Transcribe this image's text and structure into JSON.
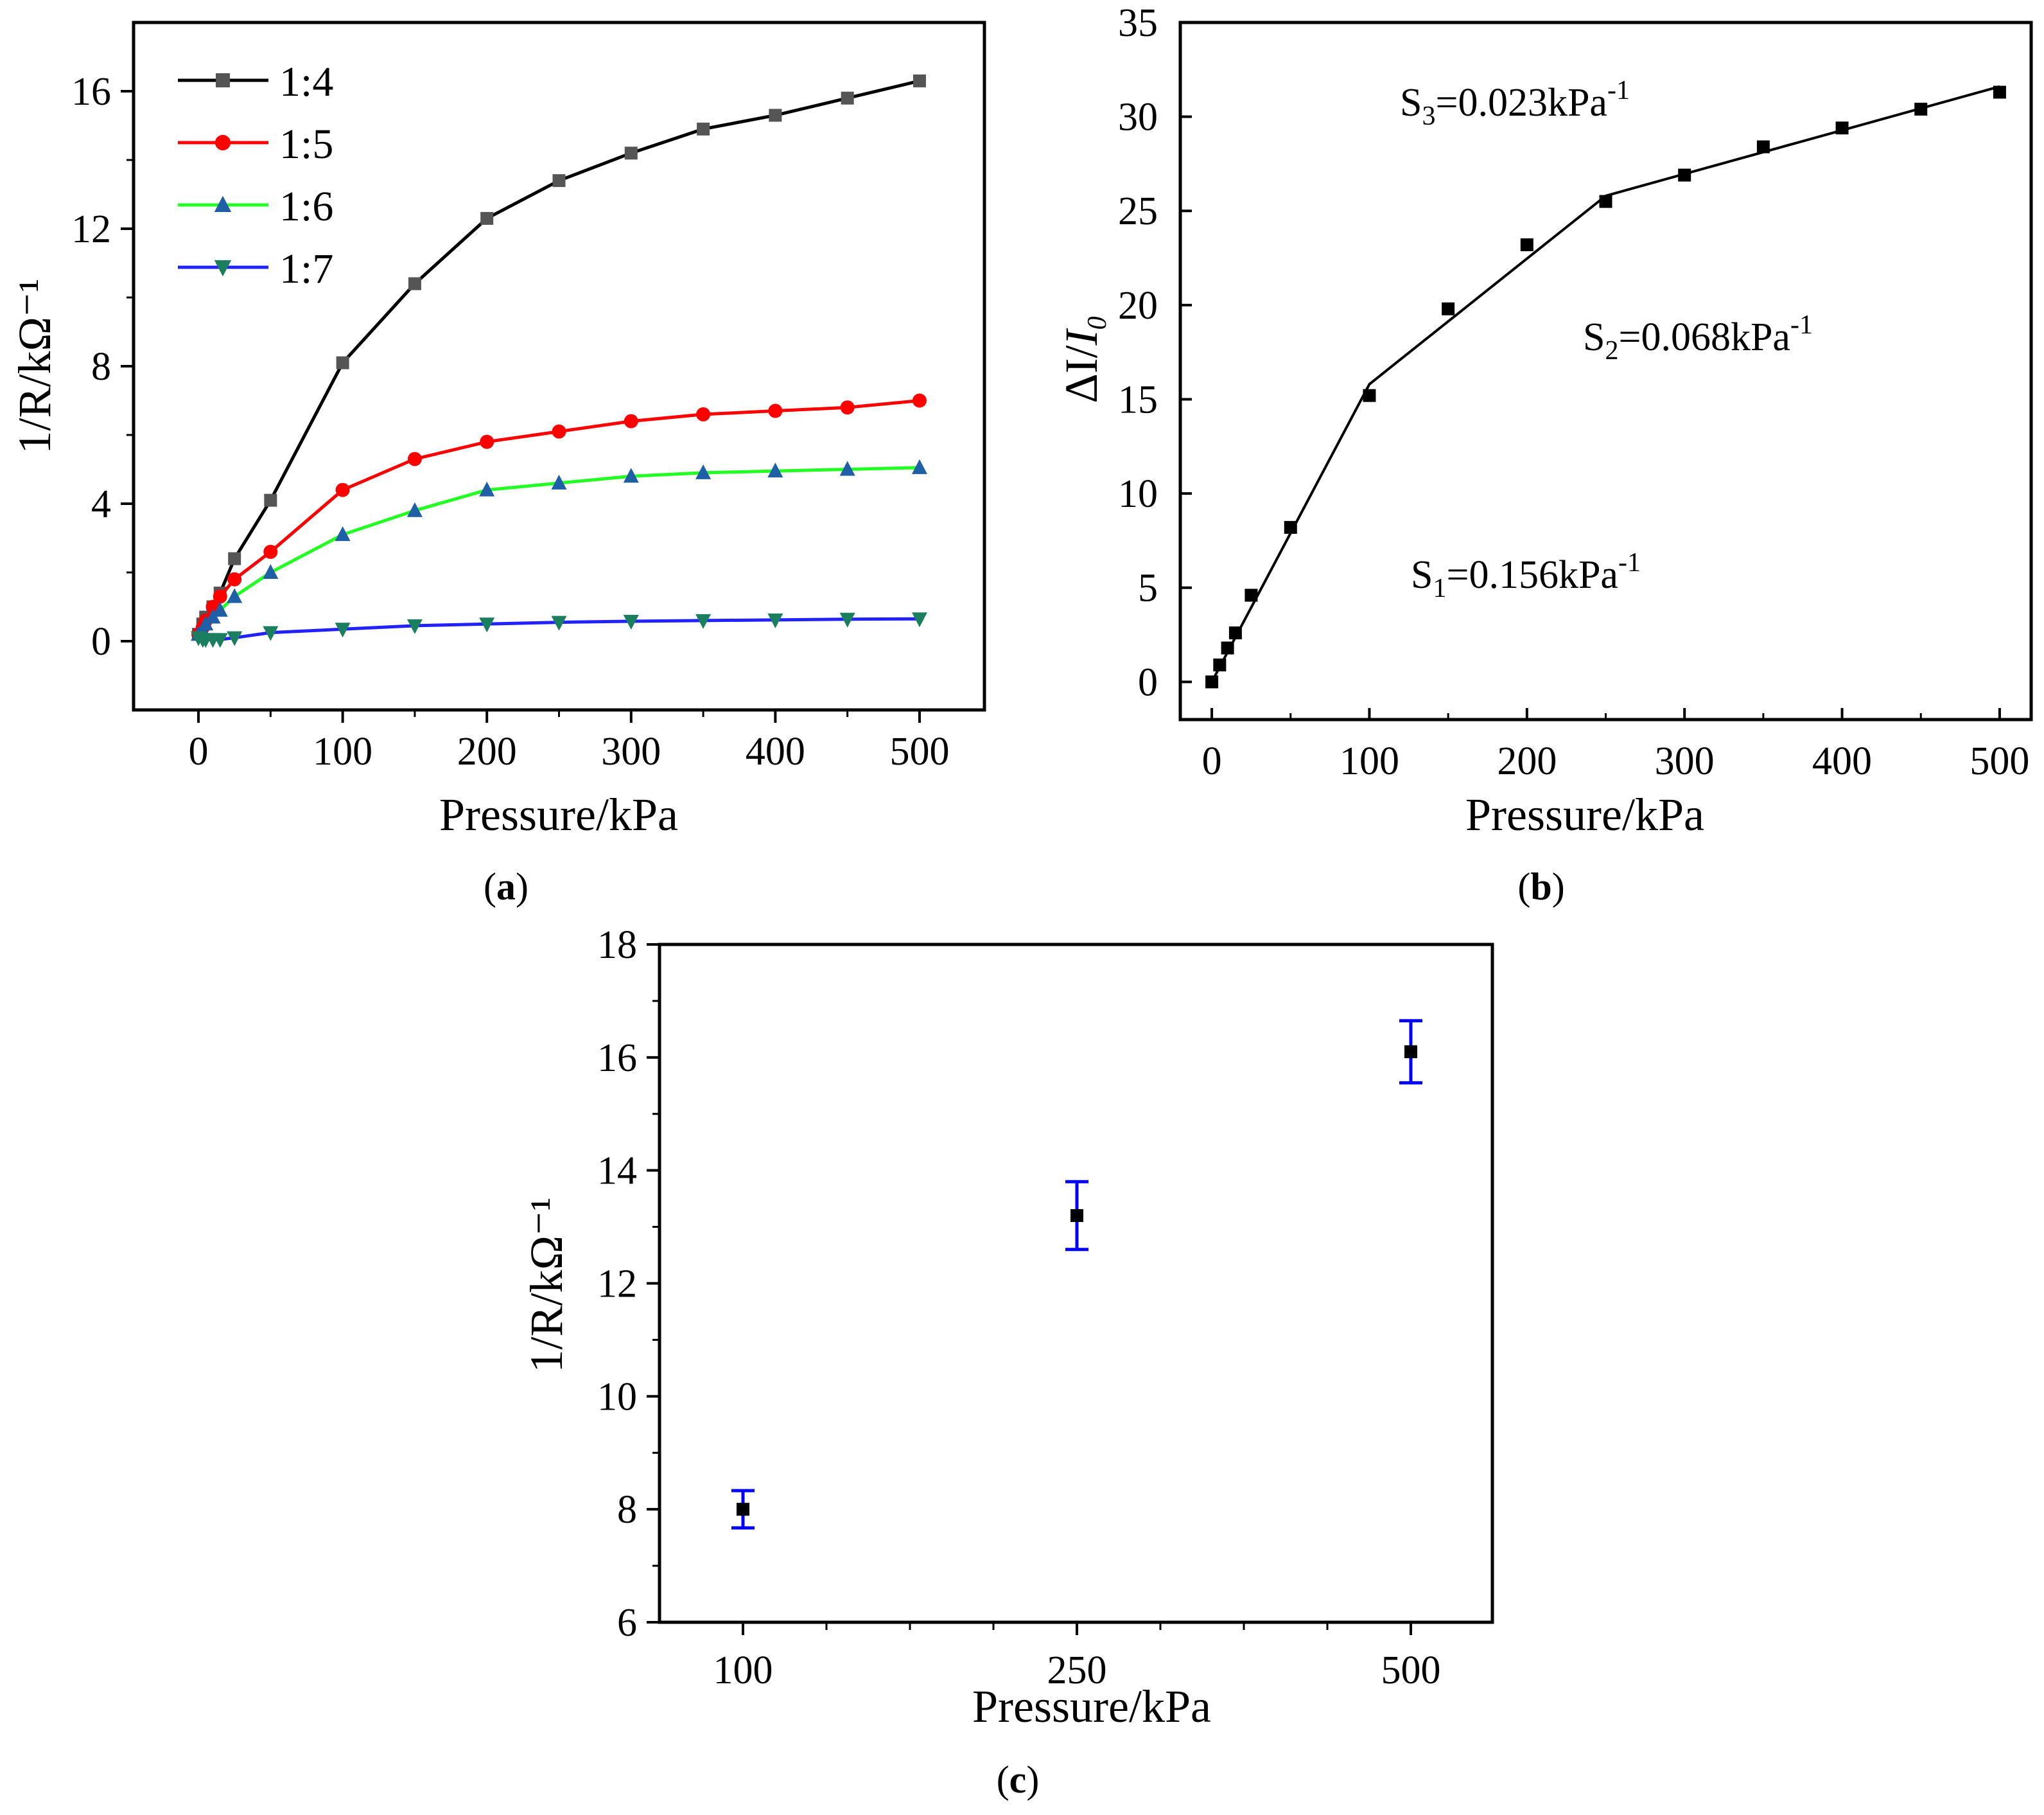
{
  "chart_data": [
    {
      "panel": "a",
      "caption": {
        "open": "(",
        "label": "a",
        "close": ")"
      },
      "type": "line",
      "xlabel": "Pressure/kPa",
      "ylabel": "1/R/kΩ⁻¹",
      "xlim": [
        -45,
        545
      ],
      "ylim": [
        -2,
        18
      ],
      "xticks": [
        0,
        100,
        200,
        300,
        400,
        500
      ],
      "yticks": [
        0,
        4,
        8,
        12,
        16
      ],
      "x": [
        0,
        3,
        5,
        10,
        15,
        25,
        50,
        100,
        150,
        200,
        250,
        300,
        350,
        400,
        450,
        500
      ],
      "series": [
        {
          "name": "1:4",
          "color": "#000000",
          "marker_color": "#555555",
          "marker": "square",
          "values": [
            0.2,
            0.5,
            0.7,
            1.0,
            1.4,
            2.4,
            4.1,
            8.1,
            10.4,
            12.3,
            13.4,
            14.2,
            14.9,
            15.3,
            15.8,
            16.3
          ]
        },
        {
          "name": "1:5",
          "color": "#ff0000",
          "marker_color": "#ff0000",
          "marker": "circle",
          "values": [
            0.2,
            0.4,
            0.6,
            1.0,
            1.3,
            1.8,
            2.6,
            4.4,
            5.3,
            5.8,
            6.1,
            6.4,
            6.6,
            6.7,
            6.8,
            7.0
          ]
        },
        {
          "name": "1:6",
          "color": "#22ff22",
          "marker_color": "#1f5fa5",
          "marker": "triangle-up",
          "values": [
            0.2,
            0.3,
            0.5,
            0.7,
            0.9,
            1.3,
            2.0,
            3.1,
            3.8,
            4.4,
            4.6,
            4.8,
            4.9,
            4.95,
            5.0,
            5.05
          ]
        },
        {
          "name": "1:7",
          "color": "#2222ff",
          "marker_color": "#1a7f5f",
          "marker": "triangle-down",
          "values": [
            0.1,
            0.05,
            0.05,
            0.05,
            0.05,
            0.1,
            0.25,
            0.35,
            0.45,
            0.5,
            0.55,
            0.58,
            0.6,
            0.62,
            0.64,
            0.65
          ]
        }
      ]
    },
    {
      "panel": "b",
      "caption": {
        "open": "(",
        "label": "b",
        "close": ")"
      },
      "type": "scatter",
      "xlabel": "Pressure/kPa",
      "ylabel": {
        "delta": "ΔI",
        "slash": "/",
        "i": "I",
        "sub": "0"
      },
      "xlim": [
        -20,
        520
      ],
      "ylim": [
        -2,
        35
      ],
      "xticks": [
        0,
        100,
        200,
        300,
        400,
        500
      ],
      "yticks": [
        0,
        5,
        10,
        15,
        20,
        25,
        30,
        35
      ],
      "points": {
        "x": [
          0,
          5,
          10,
          15,
          25,
          50,
          100,
          150,
          200,
          250,
          300,
          350,
          400,
          450,
          500
        ],
        "y": [
          0,
          0.9,
          1.8,
          2.6,
          4.6,
          8.2,
          15.2,
          19.8,
          23.2,
          25.5,
          26.9,
          28.4,
          29.4,
          30.4,
          31.3
        ]
      },
      "fit_line": {
        "x": [
          0,
          100,
          250,
          500
        ],
        "y": [
          0,
          15.8,
          25.8,
          31.6
        ]
      },
      "annotations": [
        {
          "prefix": "S",
          "sub": "1",
          "body": "=0.156kPa",
          "sup": "-1"
        },
        {
          "prefix": "S",
          "sub": "2",
          "body": "=0.068kPa",
          "sup": "-1"
        },
        {
          "prefix": "S",
          "sub": "3",
          "body": "=0.023kPa",
          "sup": "-1"
        }
      ]
    },
    {
      "panel": "c",
      "caption": {
        "open": "(",
        "label": "c",
        "close": ")"
      },
      "type": "scatter",
      "xlabel": "Pressure/kPa",
      "ylabel": "1/R/kΩ⁻¹",
      "ylim": [
        6,
        18
      ],
      "yticks": [
        6,
        8,
        10,
        12,
        14,
        16,
        18
      ],
      "categories": [
        "100",
        "250",
        "500"
      ],
      "values": [
        8.0,
        13.2,
        16.1
      ],
      "error": [
        0.33,
        0.6,
        0.55
      ],
      "marker_color": "#000000",
      "error_color": "#0000ff"
    }
  ]
}
